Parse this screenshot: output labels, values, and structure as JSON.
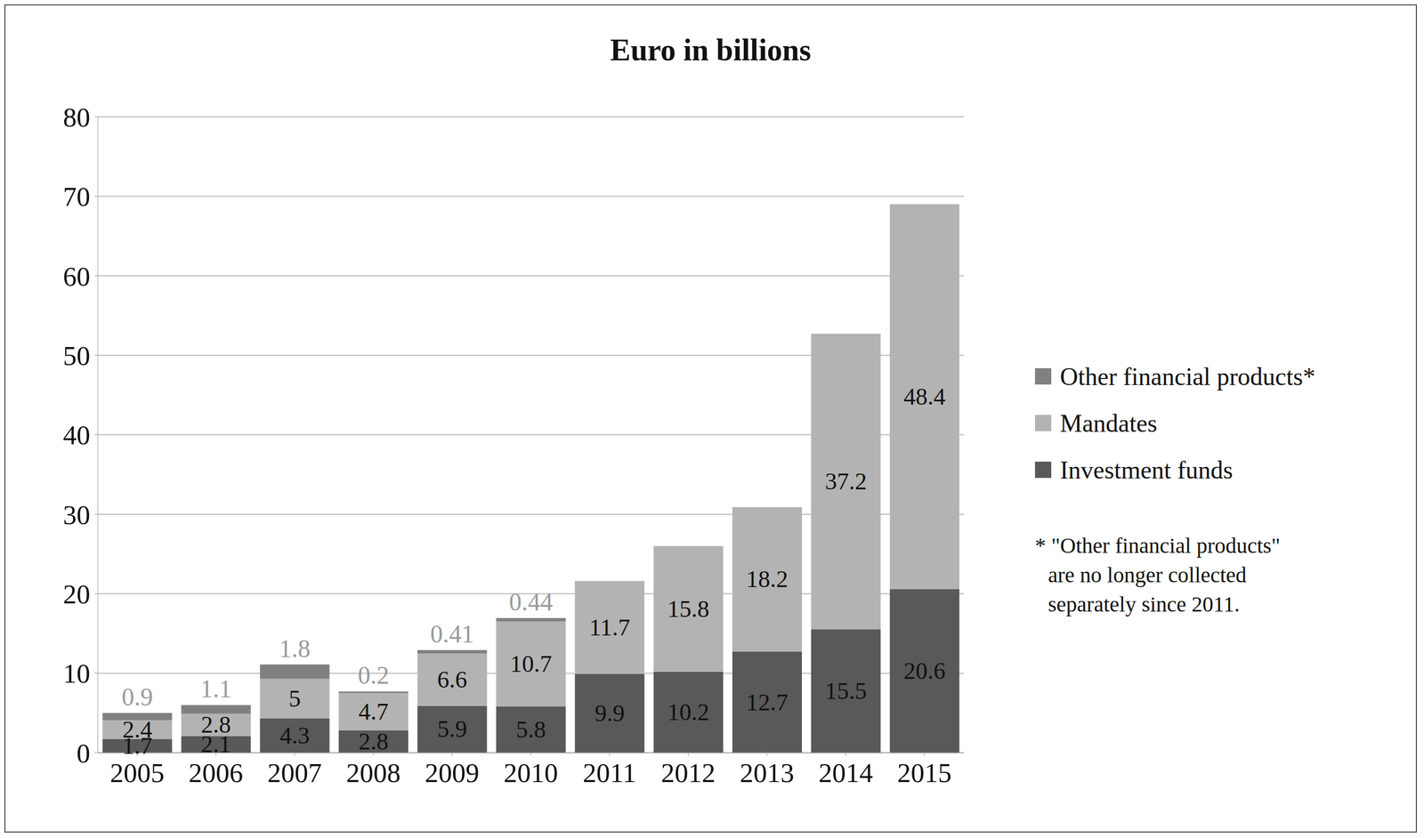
{
  "chart_data": {
    "type": "bar",
    "title": "Euro in billions",
    "categories": [
      "2005",
      "2006",
      "2007",
      "2008",
      "2009",
      "2010",
      "2011",
      "2012",
      "2013",
      "2014",
      "2015"
    ],
    "series": [
      {
        "name": "Investment funds",
        "color": "#595959",
        "values": [
          1.7,
          2.1,
          4.3,
          2.8,
          5.9,
          5.8,
          9.9,
          10.2,
          12.7,
          15.5,
          20.6
        ]
      },
      {
        "name": "Mandates",
        "color": "#b3b3b3",
        "values": [
          2.4,
          2.8,
          5,
          4.7,
          6.6,
          10.7,
          11.7,
          15.8,
          18.2,
          37.2,
          48.4
        ]
      },
      {
        "name": "Other financial products*",
        "color": "#808080",
        "values": [
          0.9,
          1.1,
          1.8,
          0.2,
          0.41,
          0.44,
          null,
          null,
          null,
          null,
          null
        ]
      }
    ],
    "ylim": [
      0,
      80
    ],
    "yticks": [
      0,
      10,
      20,
      30,
      40,
      50,
      60,
      70,
      80
    ],
    "grid": true,
    "stacked": true,
    "data_labels": true,
    "legend": "right",
    "annotations": [
      "* \"Other financial products\"",
      "are no longer collected",
      "separately since 2011."
    ]
  }
}
